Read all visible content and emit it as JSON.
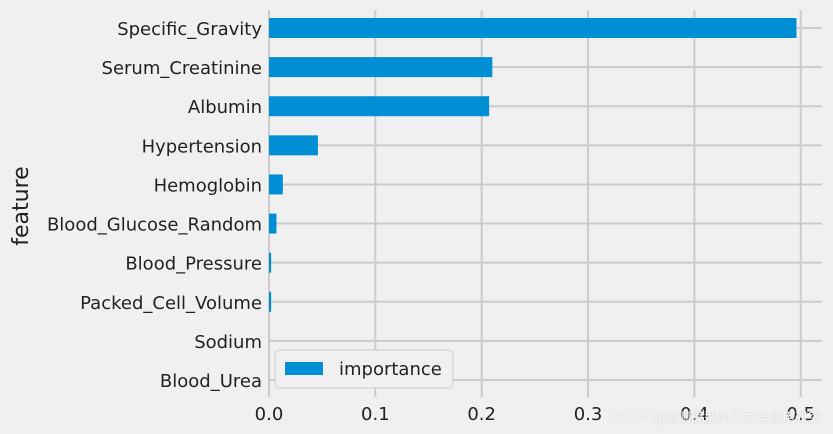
{
  "chart_data": {
    "type": "bar",
    "orientation": "horizontal",
    "categories": [
      "Specific_Gravity",
      "Serum_Creatinine",
      "Albumin",
      "Hypertension",
      "Hemoglobin",
      "Blood_Glucose_Random",
      "Blood_Pressure",
      "Packed_Cell_Volume",
      "Sodium",
      "Blood_Urea"
    ],
    "series": [
      {
        "name": "importance",
        "values": [
          0.496,
          0.21,
          0.207,
          0.046,
          0.013,
          0.007,
          0.002,
          0.002,
          0.0,
          0.0
        ]
      }
    ],
    "xlim": [
      0,
      0.52
    ],
    "xticks": [
      "0.0",
      "0.1",
      "0.2",
      "0.3",
      "0.4",
      "0.5"
    ],
    "xtick_values": [
      0,
      0.1,
      0.2,
      0.3,
      0.4,
      0.5
    ],
    "xlabel": "",
    "ylabel": "feature",
    "grid": true,
    "legend_position": "lower-left",
    "colors": {
      "bar": "#008fd5",
      "background": "#f0f0f0",
      "grid": "#cbcbcb",
      "text": "#222222"
    }
  },
  "watermark": "CSDN @预测模型的开发与应用研究"
}
